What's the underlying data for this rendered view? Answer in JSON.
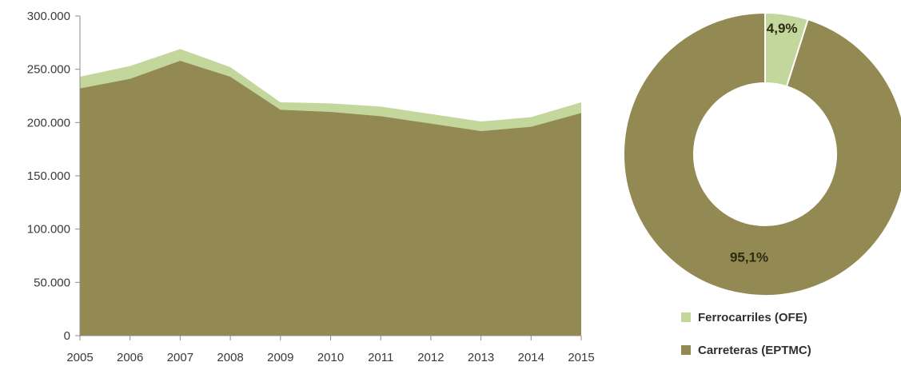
{
  "chart_data": [
    {
      "type": "area",
      "stacked": true,
      "title": "",
      "xlabel": "",
      "ylabel": "",
      "categories": [
        "2005",
        "2006",
        "2007",
        "2008",
        "2009",
        "2010",
        "2011",
        "2012",
        "2013",
        "2014",
        "2015"
      ],
      "ylim": [
        0,
        300000
      ],
      "yticks": [
        0,
        50000,
        100000,
        150000,
        200000,
        250000,
        300000
      ],
      "ytick_labels": [
        "0",
        "50.000",
        "100.000",
        "150.000",
        "200.000",
        "250.000",
        "300.000"
      ],
      "grid": false,
      "series": [
        {
          "name": "Carreteras (EPTMC)",
          "color": "#938953",
          "values": [
            232000,
            241000,
            258000,
            243000,
            212000,
            210000,
            206000,
            199000,
            192000,
            196000,
            209000
          ]
        },
        {
          "name": "Ferrocarriles (OFE)",
          "color": "#c3d69b",
          "values": [
            11000,
            12000,
            11000,
            9000,
            7000,
            8000,
            9000,
            9000,
            9000,
            9000,
            10000
          ]
        }
      ]
    },
    {
      "type": "pie",
      "donut": true,
      "title": "",
      "slices": [
        {
          "name": "Ferrocarriles (OFE)",
          "value": 4.9,
          "label": "4,9%",
          "color": "#c3d69b"
        },
        {
          "name": "Carreteras (EPTMC)",
          "value": 95.1,
          "label": "95,1%",
          "color": "#938953"
        }
      ],
      "legend": "bottom"
    }
  ],
  "legend": {
    "items": [
      {
        "label": "Ferrocarriles (OFE)",
        "color": "#c3d69b"
      },
      {
        "label": "Carreteras (EPTMC)",
        "color": "#938953"
      }
    ]
  }
}
